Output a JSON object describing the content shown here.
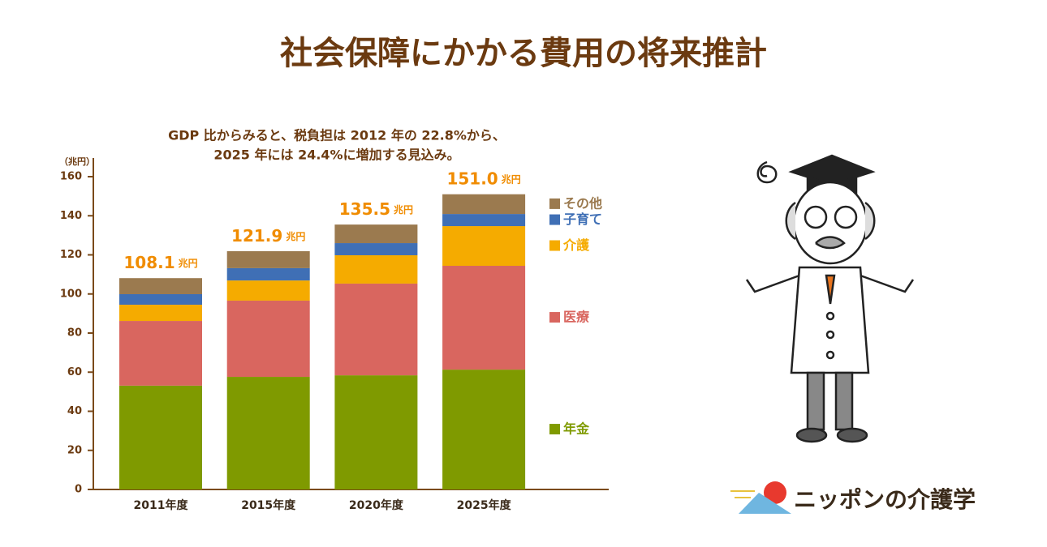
{
  "chart_data": {
    "type": "stacked_bar",
    "title": "社会保障にかかる費用の将来推計",
    "subtitle": [
      "GDP 比からみると、税負担は 2012 年の 22.8%から、",
      "2025 年には 24.4%に増加する見込み。"
    ],
    "y_label": "（兆円）",
    "categories": [
      "2011年度",
      "2015年度",
      "2020年度",
      "2025年度"
    ],
    "series": [
      {
        "name": "年金",
        "color": "#7f9a00",
        "values": [
          53.1,
          57.6,
          58.4,
          61.3
        ]
      },
      {
        "name": "医療",
        "color": "#d9665f",
        "values": [
          33.1,
          39.0,
          46.9,
          53.1
        ]
      },
      {
        "name": "介護",
        "color": "#f5ab00",
        "values": [
          8.3,
          10.3,
          14.5,
          20.3
        ]
      },
      {
        "name": "子育て",
        "color": "#3f6fb5",
        "values": [
          5.4,
          6.3,
          6.2,
          6.2
        ]
      },
      {
        "name": "その他",
        "color": "#9b7a4f",
        "values": [
          8.2,
          8.7,
          9.5,
          10.1
        ]
      }
    ],
    "total_labels": [
      "108.1",
      "121.9",
      "135.5",
      "151.0"
    ],
    "total_unit": "兆円",
    "ylim": [
      0,
      160
    ],
    "yticks": [
      0,
      20,
      40,
      60,
      80,
      100,
      120,
      140,
      160
    ],
    "grid": false
  },
  "logo": "ニッポンの介護学"
}
